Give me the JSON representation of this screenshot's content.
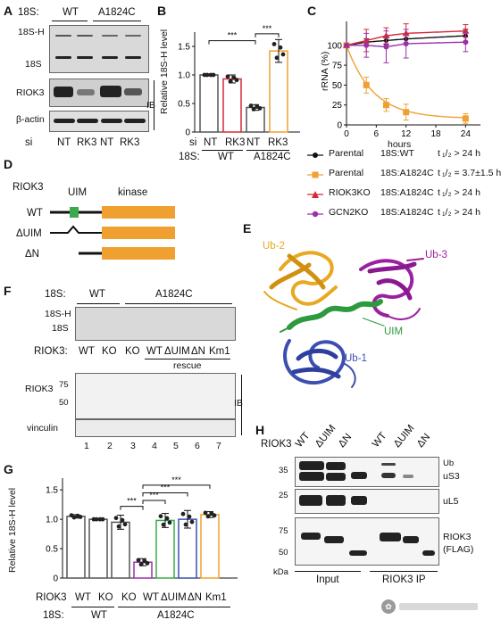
{
  "panels": [
    "A",
    "B",
    "C",
    "D",
    "E",
    "F",
    "G",
    "H"
  ],
  "A": {
    "row_label": "18S:",
    "groups": [
      "WT",
      "A1824C"
    ],
    "bands": [
      "18S-H",
      "18S",
      "RIOK3",
      "β-actin"
    ],
    "ib": "IB",
    "si_label": "si",
    "lanes": [
      "NT",
      "RK3",
      "NT",
      "RK3"
    ]
  },
  "B": {
    "ylabel": "Relative 18S-H level",
    "yticks": [
      "0",
      "0.5",
      "1.0",
      "1.5"
    ],
    "sig": [
      "***",
      "***"
    ],
    "si_label": "si",
    "lanes": [
      "NT",
      "RK3",
      "NT",
      "RK3"
    ],
    "row_label": "18S:",
    "groups": [
      "WT",
      "A1824C"
    ]
  },
  "C": {
    "ylabel": "rRNA (%)",
    "xlabel": "hours",
    "xticks": [
      "0",
      "6",
      "12",
      "18",
      "24"
    ],
    "yticks": [
      "0",
      "25",
      "50",
      "75",
      "100"
    ],
    "legend": [
      {
        "cond": "Parental",
        "rna": "18S:WT",
        "half": "t ₁/₂ > 24 h",
        "color": "#111111"
      },
      {
        "cond": "Parental",
        "rna": "18S:A1824C",
        "half": "t ₁/₂ = 3.7±1.5 h",
        "color": "#f0a030"
      },
      {
        "cond": "RIOK3KO",
        "rna": "18S:A1824C",
        "half": "t ₁/₂ > 24 h",
        "color": "#d62839"
      },
      {
        "cond": "GCN2KO",
        "rna": "18S:A1824C",
        "half": "t ₁/₂ > 24 h",
        "color": "#9b30a8"
      }
    ]
  },
  "D": {
    "protein": "RIOK3",
    "uim": "UIM",
    "kinase": "kinase",
    "constructs": [
      "WT",
      "ΔUIM",
      "ΔN"
    ]
  },
  "E": {
    "labels": [
      "Ub-2",
      "Ub-3",
      "UIM",
      "Ub-1"
    ]
  },
  "F": {
    "row_label": "18S:",
    "groups": [
      "WT",
      "A1824C"
    ],
    "bands": [
      "18S-H",
      "18S",
      "RIOK3",
      "vinculin"
    ],
    "mw": [
      "75",
      "50"
    ],
    "ib": "IB",
    "riok3_label": "RIOK3:",
    "lanes": [
      "WT",
      "KO",
      "KO",
      "WT",
      "ΔUIM",
      "ΔN",
      "Km1"
    ],
    "rescue": "rescue",
    "numbers": [
      "1",
      "2",
      "3",
      "4",
      "5",
      "6",
      "7"
    ]
  },
  "G": {
    "ylabel": "Relative 18S-H level",
    "yticks": [
      "0",
      "0.5",
      "1.0",
      "1.5"
    ],
    "sig": [
      "***",
      "***",
      "***",
      "***"
    ],
    "riok3_label": "RIOK3",
    "lanes": [
      "WT",
      "KO",
      "KO",
      "WT",
      "ΔUIM",
      "ΔN",
      "Km1"
    ],
    "row_label": "18S:",
    "groups": [
      "WT",
      "A1824C"
    ]
  },
  "H": {
    "riok3_label": "RIOK3",
    "lanes": [
      "WT",
      "ΔUIM",
      "ΔN",
      "WT",
      "ΔUIM",
      "ΔN"
    ],
    "mw": [
      "35",
      "25",
      "75",
      "50"
    ],
    "kda": "kDa",
    "bands": [
      "Ub",
      "uS3",
      "uL5",
      "RIOK3",
      "(FLAG)"
    ],
    "groups": [
      "Input",
      "RIOK3 IP"
    ]
  },
  "chart_data": [
    {
      "panel": "B",
      "type": "bar",
      "categories": [
        "WT NT",
        "WT RK3",
        "A1824C NT",
        "A1824C RK3"
      ],
      "values": [
        1.0,
        0.93,
        0.43,
        1.42
      ],
      "errors": [
        0.0,
        0.07,
        0.05,
        0.2
      ],
      "colors": [
        "#555555",
        "#d62839",
        "#555555",
        "#f0a030"
      ],
      "ylabel": "Relative 18S-H level",
      "ylim": [
        0,
        1.75
      ]
    },
    {
      "panel": "C",
      "type": "line",
      "xlabel": "hours",
      "ylabel": "rRNA (%)",
      "xlim": [
        0,
        27
      ],
      "ylim": [
        0,
        130
      ],
      "series": [
        {
          "name": "Parental 18S:WT",
          "color": "#111111",
          "x": [
            0,
            4,
            8,
            12,
            24
          ],
          "y": [
            100,
            104,
            106,
            108,
            112
          ]
        },
        {
          "name": "Parental 18S:A1824C",
          "color": "#f0a030",
          "x": [
            0,
            4,
            8,
            12,
            24
          ],
          "y": [
            100,
            50,
            25,
            16,
            8
          ]
        },
        {
          "name": "RIOK3KO 18S:A1824C",
          "color": "#d62839",
          "x": [
            0,
            4,
            8,
            12,
            24
          ],
          "y": [
            100,
            106,
            112,
            115,
            118
          ]
        },
        {
          "name": "GCN2KO 18S:A1824C",
          "color": "#9b30a8",
          "x": [
            0,
            4,
            8,
            12,
            24
          ],
          "y": [
            100,
            100,
            98,
            102,
            104
          ]
        }
      ]
    },
    {
      "panel": "G",
      "type": "bar",
      "categories": [
        "WT WT",
        "KO WT",
        "KO A1824C",
        "WT A1824C",
        "ΔUIM A1824C",
        "ΔN A1824C",
        "Km1 A1824C"
      ],
      "values": [
        1.05,
        1.0,
        0.95,
        0.27,
        0.98,
        1.0,
        1.08
      ],
      "errors": [
        0.03,
        0.0,
        0.12,
        0.06,
        0.12,
        0.15,
        0.05
      ],
      "colors": [
        "#555555",
        "#555555",
        "#555555",
        "#9b30a8",
        "#3aaa4a",
        "#3c4fb0",
        "#f0a030"
      ],
      "ylabel": "Relative 18S-H level",
      "ylim": [
        0,
        1.7
      ]
    }
  ]
}
